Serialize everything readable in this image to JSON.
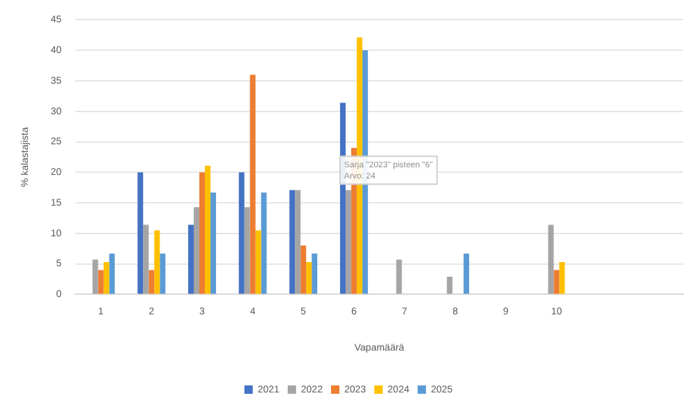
{
  "chart_data": {
    "type": "bar",
    "xlabel": "Vapamäärä",
    "ylabel": "% kalastajista",
    "categories": [
      "1",
      "2",
      "3",
      "4",
      "5",
      "6",
      "7",
      "8",
      "9",
      "10",
      null,
      null
    ],
    "series": [
      {
        "name": "2021",
        "color": "#4472c4",
        "values": [
          0,
          20,
          11.4,
          20,
          17.1,
          31.4,
          0,
          0,
          0,
          0,
          null,
          null
        ]
      },
      {
        "name": "2022",
        "color": "#a5a5a5",
        "values": [
          5.7,
          11.4,
          14.3,
          14.3,
          17.1,
          17.1,
          5.7,
          2.9,
          0,
          11.4,
          null,
          null
        ]
      },
      {
        "name": "2023",
        "color": "#ed7d31",
        "values": [
          4,
          4,
          20,
          36,
          8,
          24,
          0,
          0,
          0,
          4,
          null,
          null
        ]
      },
      {
        "name": "2024",
        "color": "#ffc000",
        "values": [
          5.3,
          10.5,
          21.1,
          10.5,
          5.3,
          42.1,
          0,
          0,
          0,
          5.3,
          null,
          null
        ]
      },
      {
        "name": "2025",
        "color": "#5b9bd5",
        "values": [
          6.7,
          6.7,
          16.7,
          16.7,
          6.7,
          40,
          0,
          6.7,
          0,
          0,
          null,
          null
        ]
      }
    ],
    "ylim": [
      0,
      45
    ],
    "yticks": [
      0,
      5,
      10,
      15,
      20,
      25,
      30,
      35,
      40,
      45
    ],
    "grid": "y",
    "legend": "bottom",
    "annotations": [
      {
        "text": "Sarja \"2023\" pisteen \"6\"\nArvo: 24",
        "x": "6",
        "y": 24
      }
    ]
  }
}
